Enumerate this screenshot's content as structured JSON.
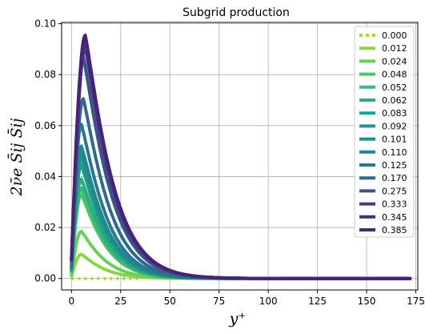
{
  "chart_data": {
    "type": "line",
    "title": "Subgrid production",
    "xlabel": "y⁺",
    "ylabel": "2ν̄e S̄ij S̄ij",
    "xlim": [
      -5,
      176
    ],
    "ylim": [
      -0.0045,
      0.1005
    ],
    "x_ticks": [
      0,
      25,
      50,
      75,
      100,
      125,
      150,
      175
    ],
    "y_ticks": [
      0.0,
      0.02,
      0.04,
      0.06,
      0.08,
      0.1
    ],
    "x_tick_labels": [
      "0",
      "25",
      "50",
      "75",
      "100",
      "125",
      "150",
      "175"
    ],
    "y_tick_labels": [
      "0.00",
      "0.02",
      "0.04",
      "0.06",
      "0.08",
      "0.10"
    ],
    "grid": true,
    "legend_position": "top-right",
    "series": [
      {
        "name": "0.000",
        "color": "#a6db35",
        "dashed": true,
        "peak_x": 6,
        "peak_y": 0.0,
        "x_end": 35
      },
      {
        "name": "0.012",
        "color": "#8ad547",
        "peak_x": 5,
        "peak_y": 0.0095,
        "x_end": 172
      },
      {
        "name": "0.024",
        "color": "#6ccd5a",
        "peak_x": 5,
        "peak_y": 0.0185,
        "x_end": 172
      },
      {
        "name": "0.048",
        "color": "#52c569",
        "peak_x": 5,
        "peak_y": 0.033,
        "x_end": 172
      },
      {
        "name": "0.052",
        "color": "#3aba76",
        "peak_x": 5,
        "peak_y": 0.0355,
        "x_end": 172
      },
      {
        "name": "0.062",
        "color": "#27ad81",
        "peak_x": 5,
        "peak_y": 0.039,
        "x_end": 172
      },
      {
        "name": "0.083",
        "color": "#1fa188",
        "peak_x": 5,
        "peak_y": 0.0445,
        "x_end": 172
      },
      {
        "name": "0.092",
        "color": "#1f958b",
        "peak_x": 5,
        "peak_y": 0.0475,
        "x_end": 172
      },
      {
        "name": "0.101",
        "color": "#21918c",
        "peak_x": 5,
        "peak_y": 0.0495,
        "x_end": 172
      },
      {
        "name": "0.110",
        "color": "#24868e",
        "peak_x": 5,
        "peak_y": 0.052,
        "x_end": 172
      },
      {
        "name": "0.125",
        "color": "#2a788e",
        "peak_x": 5,
        "peak_y": 0.0605,
        "x_end": 172
      },
      {
        "name": "0.170",
        "color": "#31688e",
        "peak_x": 6,
        "peak_y": 0.0705,
        "x_end": 172
      },
      {
        "name": "0.275",
        "color": "#3b528b",
        "peak_x": 6,
        "peak_y": 0.087,
        "x_end": 172
      },
      {
        "name": "0.333",
        "color": "#433e85",
        "peak_x": 7,
        "peak_y": 0.0905,
        "x_end": 172
      },
      {
        "name": "0.345",
        "color": "#472d7b",
        "peak_x": 7,
        "peak_y": 0.0935,
        "x_end": 172
      },
      {
        "name": "0.385",
        "color": "#482475",
        "peak_x": 7,
        "peak_y": 0.0955,
        "x_end": 172
      }
    ]
  }
}
